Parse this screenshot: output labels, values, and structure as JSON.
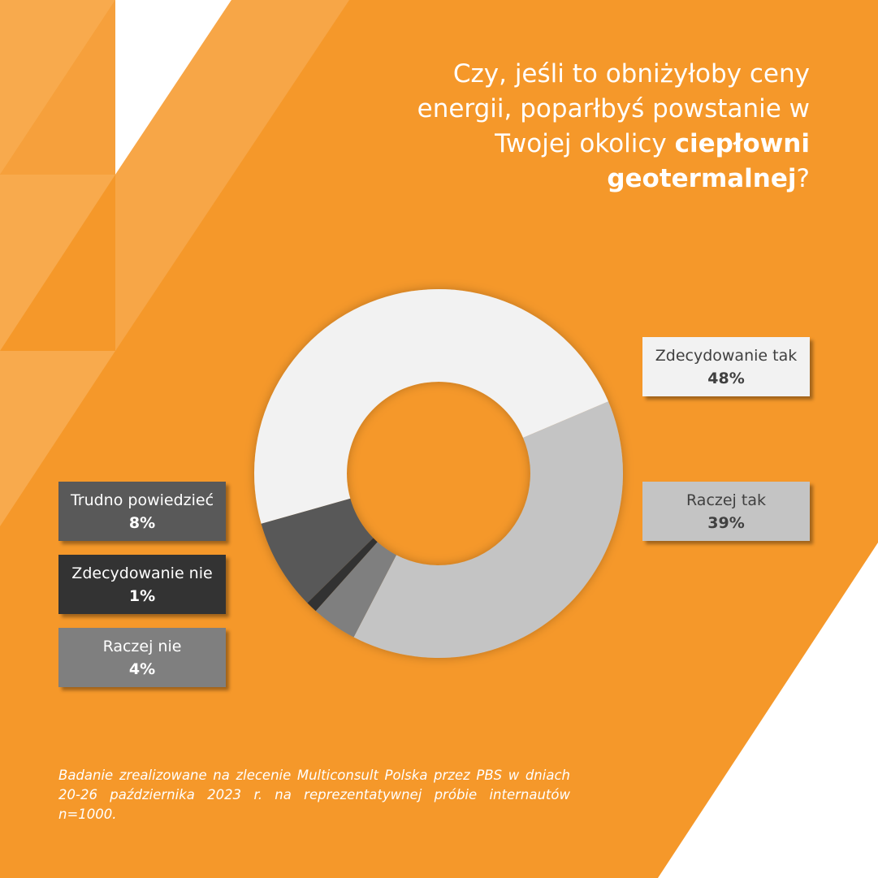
{
  "title": {
    "text_before": "Czy, jeśli to obniżyłoby ceny energii, poparłbyś powstanie w Twojej okolicy ",
    "text_bold": "ciepłowni geotermalnej",
    "text_after": "?"
  },
  "footnote": "Badanie zrealizowane na zlecenie Multiconsult Polska przez PBS w dniach 20-26 października 2023 r. na reprezentatywnej próbie internautów n=1000.",
  "chart_data": {
    "type": "pie",
    "donut": true,
    "categories": [
      "Zdecydowanie tak",
      "Raczej tak",
      "Raczej nie",
      "Zdecydowanie nie",
      "Trudno powiedzieć"
    ],
    "values": [
      48,
      39,
      4,
      1,
      8
    ],
    "value_labels": [
      "48%",
      "39%",
      "4%",
      "1%",
      "8%"
    ],
    "colors": [
      "#f2f2f2",
      "#c4c4c4",
      "#7f7f7f",
      "#333333",
      "#595959"
    ],
    "label_text_colors": [
      "#404040",
      "#404040",
      "#ffffff",
      "#ffffff",
      "#ffffff"
    ],
    "legend": "boxes beside the chart"
  },
  "colors": {
    "background": "#f5982a",
    "accent_light": "#f7a647",
    "white": "#ffffff"
  }
}
